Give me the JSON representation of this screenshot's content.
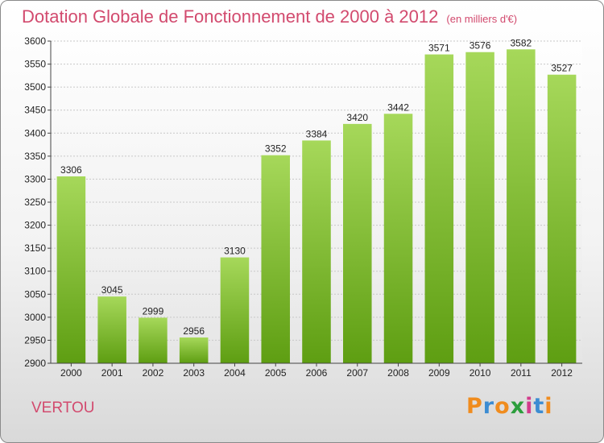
{
  "title": "Dotation Globale de Fonctionnement de 2000 à 2012",
  "title_unit": "(en milliers d'€)",
  "city": "VERTOU",
  "logo": {
    "text": "Proxiti",
    "colors": [
      "#f08c1e",
      "#3c8cd2",
      "#f08c1e",
      "#2c9e3c",
      "#d23c8c",
      "#3c8cd2",
      "#f08c1e"
    ]
  },
  "colors": {
    "title": "#d24a6e",
    "bar_top": "#a6d85a",
    "bar_bottom": "#5e9e12"
  },
  "chart_data": {
    "type": "bar",
    "categories": [
      "2000",
      "2001",
      "2002",
      "2003",
      "2004",
      "2005",
      "2006",
      "2007",
      "2008",
      "2009",
      "2010",
      "2011",
      "2012"
    ],
    "values": [
      3306,
      3045,
      2999,
      2956,
      3130,
      3352,
      3384,
      3420,
      3442,
      3571,
      3576,
      3582,
      3527
    ],
    "ylim": [
      2900,
      3600
    ],
    "yticks": [
      2900,
      2950,
      3000,
      3050,
      3100,
      3150,
      3200,
      3250,
      3300,
      3350,
      3400,
      3450,
      3500,
      3550,
      3600
    ],
    "grid": true,
    "xlabel": "",
    "ylabel": ""
  }
}
